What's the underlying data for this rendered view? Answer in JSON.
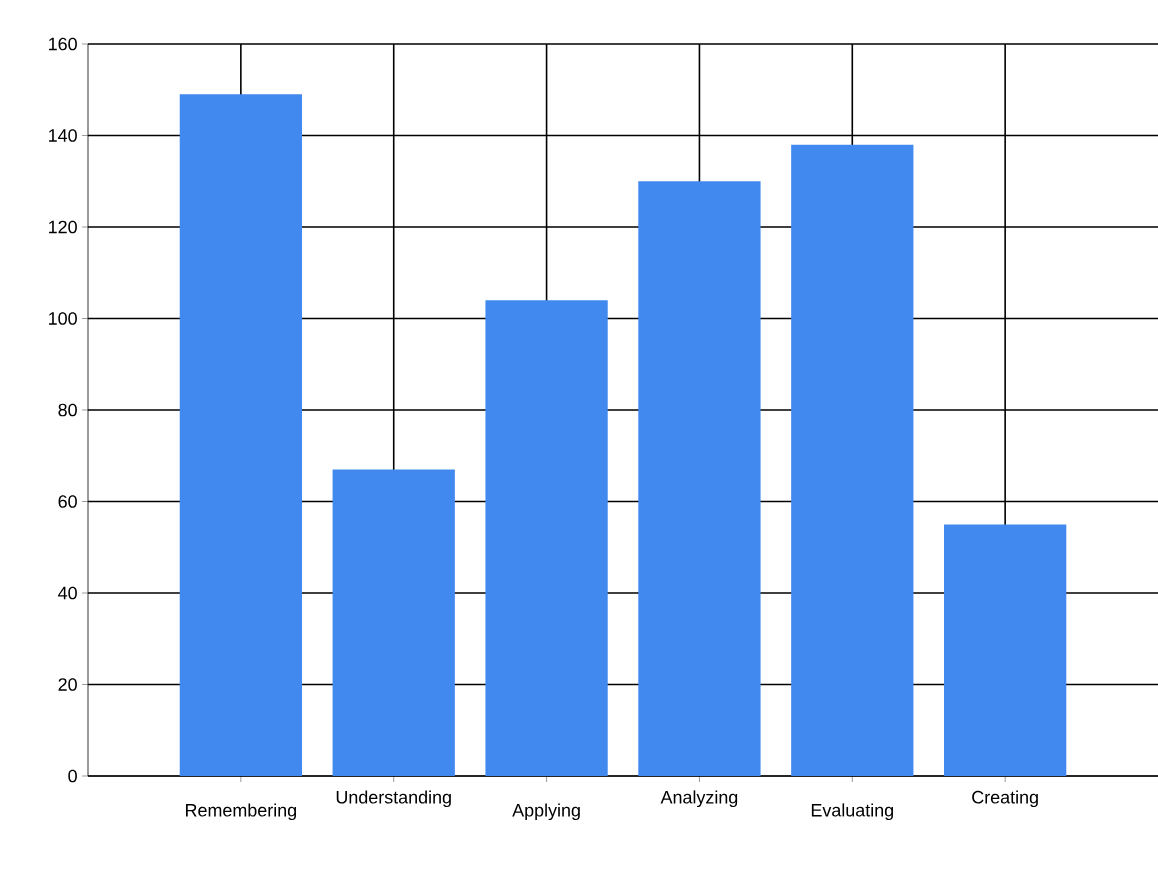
{
  "chart_data": {
    "type": "bar",
    "categories": [
      "Remembering",
      "Understanding",
      "Applying",
      "Analyzing",
      "Evaluating",
      "Creating"
    ],
    "values": [
      149,
      67,
      104,
      130,
      138,
      55
    ],
    "color": "#4189ee",
    "ylim": [
      0,
      160
    ],
    "yticks": [
      0,
      20,
      40,
      60,
      80,
      100,
      120,
      140,
      160
    ],
    "grid": true
  }
}
